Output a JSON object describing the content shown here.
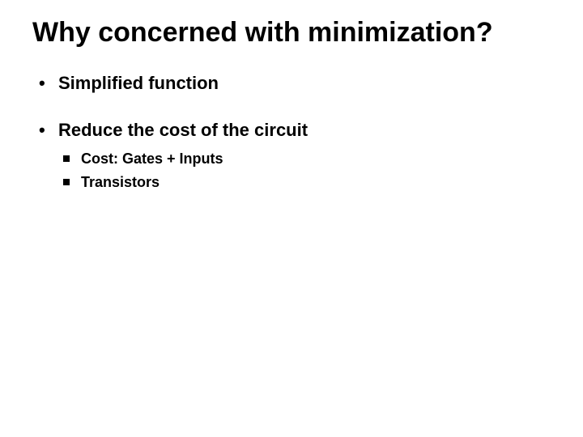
{
  "slide": {
    "title": "Why concerned with minimization?",
    "title_fontsize": 34,
    "title_weight": "bold",
    "background_color": "#ffffff",
    "text_color": "#000000",
    "font_family": "Arial",
    "bullets": [
      {
        "text": "Simplified function",
        "fontsize": 22,
        "weight": "bold",
        "marker": "disc"
      },
      {
        "text": "Reduce the cost of the circuit",
        "fontsize": 22,
        "weight": "bold",
        "marker": "disc",
        "children": [
          {
            "text": "Cost: Gates + Inputs",
            "fontsize": 18,
            "weight": "bold",
            "marker": "square"
          },
          {
            "text": "Transistors",
            "fontsize": 18,
            "weight": "bold",
            "marker": "square"
          }
        ]
      }
    ]
  }
}
